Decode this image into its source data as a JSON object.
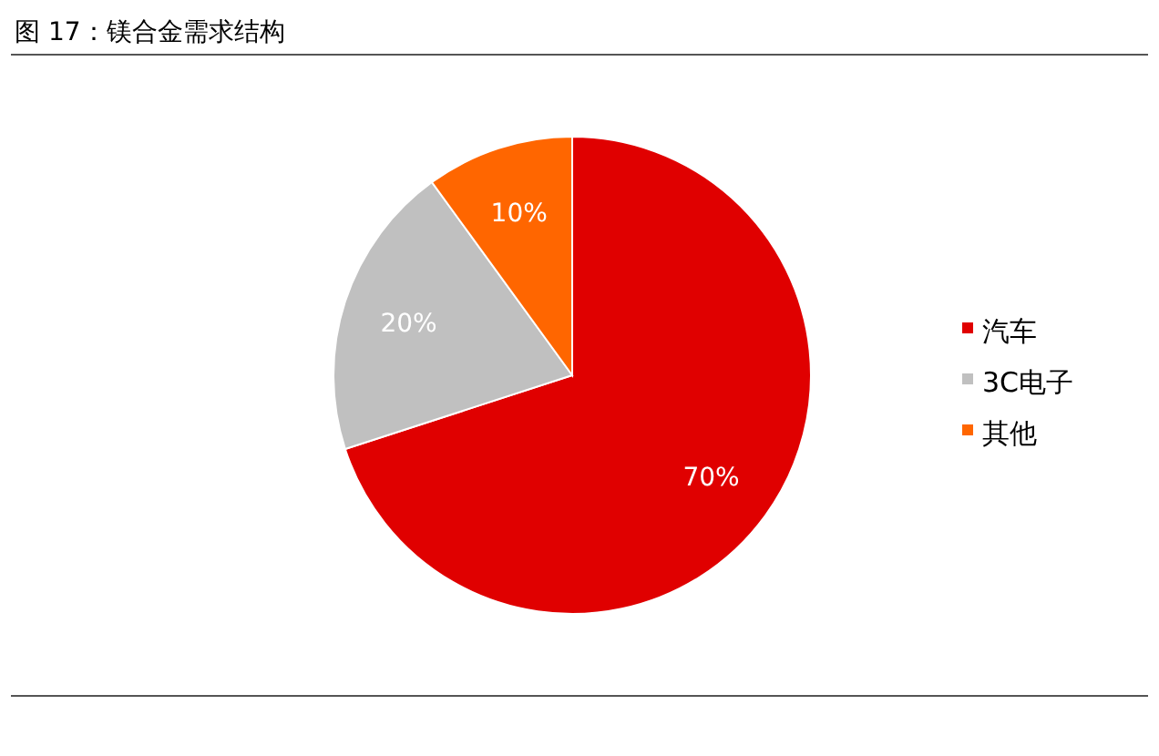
{
  "chart_data": {
    "type": "pie",
    "title": "图 17：镁合金需求结构",
    "categories": [
      "汽车",
      "3C电子",
      "其他"
    ],
    "values": [
      70,
      20,
      10
    ],
    "colors": [
      "#e00000",
      "#c0c0c0",
      "#ff6600"
    ],
    "value_labels": [
      "70%",
      "20%",
      "10%"
    ],
    "legend": "right"
  }
}
